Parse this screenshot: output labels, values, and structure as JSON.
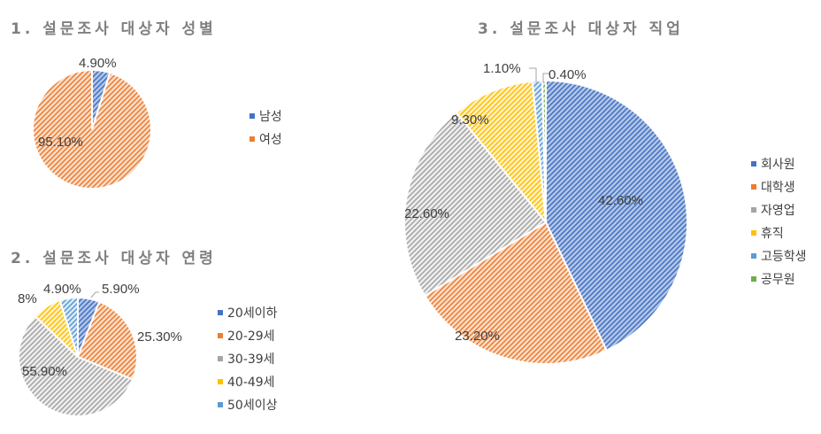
{
  "colors": {
    "blue": "#4472c4",
    "blue_light": "#b4c7e7",
    "orange": "#ed7d31",
    "orange_light": "#f8cbad",
    "gray": "#a5a5a5",
    "gray_light": "#e7e6e6",
    "yellow": "#ffc000",
    "yellow_light": "#ffe699",
    "lightblue": "#5b9bd5",
    "lightblue_light": "#bdd7ee",
    "green": "#70ad47",
    "green_light": "#c5e0b4"
  },
  "charts": {
    "gender": {
      "title": "1. 설문조사 대상자 성별",
      "legend": [
        "남성",
        "여성"
      ],
      "labels": [
        "4.90%",
        "95.10%"
      ]
    },
    "age": {
      "title": "2. 설문조사 대상자 연령",
      "legend": [
        "20세이하",
        "20-29세",
        "30-39세",
        "40-49세",
        "50세이상"
      ],
      "labels": [
        "5.90%",
        "25.30%",
        "55.90%",
        "8%",
        "4.90%"
      ]
    },
    "job": {
      "title": "3. 설문조사 대상자 직업",
      "legend": [
        "회사원",
        "대학생",
        "자영업",
        "휴직",
        "고등학생",
        "공무원"
      ],
      "labels": [
        "42.60%",
        "23.20%",
        "22.60%",
        "9.30%",
        "1.10%",
        "0.40%"
      ]
    }
  },
  "chart_data": [
    {
      "type": "pie",
      "title": "1. 설문조사 대상자 성별",
      "categories": [
        "남성",
        "여성"
      ],
      "values": [
        4.9,
        95.1
      ],
      "value_labels": [
        "4.90%",
        "95.10%"
      ],
      "legend_position": "right",
      "pattern": "diagonal-hatch"
    },
    {
      "type": "pie",
      "title": "2. 설문조사 대상자 연령",
      "categories": [
        "20세이하",
        "20-29세",
        "30-39세",
        "40-49세",
        "50세이상"
      ],
      "values": [
        5.9,
        25.3,
        55.9,
        8.0,
        4.9
      ],
      "value_labels": [
        "5.90%",
        "25.30%",
        "55.90%",
        "8%",
        "4.90%"
      ],
      "legend_position": "right",
      "pattern": "diagonal-hatch"
    },
    {
      "type": "pie",
      "title": "3. 설문조사 대상자 직업",
      "categories": [
        "회사원",
        "대학생",
        "자영업",
        "휴직",
        "고등학생",
        "공무원"
      ],
      "values": [
        42.6,
        23.2,
        22.6,
        9.3,
        1.1,
        0.4
      ],
      "value_labels": [
        "42.60%",
        "23.20%",
        "22.60%",
        "9.30%",
        "1.10%",
        "0.40%"
      ],
      "legend_position": "right",
      "pattern": "diagonal-hatch"
    }
  ]
}
